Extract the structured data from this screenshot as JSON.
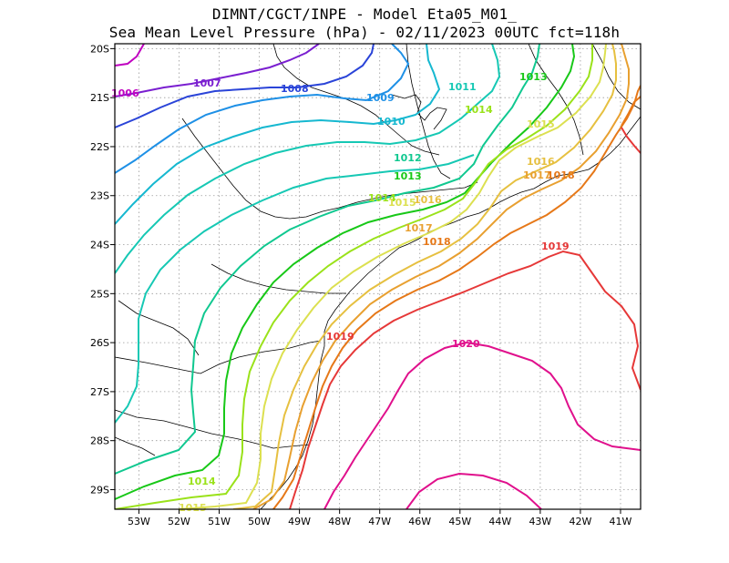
{
  "title_line1": "DIMNT/CGCT/INPE -  Model Eta05_M01_",
  "title_line2": "Sea Mean Level Pressure (hPa) - 02/11/2023 00UTC fct=118h",
  "map": {
    "lon_range": [
      -53.6,
      -40.5
    ],
    "lat_range": [
      -29.4,
      -19.9
    ],
    "x_ticks": [
      "53W",
      "52W",
      "51W",
      "50W",
      "49W",
      "48W",
      "47W",
      "46W",
      "45W",
      "44W",
      "43W",
      "42W",
      "41W"
    ],
    "y_ticks": [
      "20S",
      "21S",
      "22S",
      "23S",
      "24S",
      "25S",
      "26S",
      "27S",
      "28S",
      "29S"
    ],
    "grid": "dotted"
  },
  "contours": [
    {
      "level": "1006",
      "color": "#c000c0"
    },
    {
      "level": "1007",
      "color": "#7a1fd0"
    },
    {
      "level": "1008",
      "color": "#2a44d8"
    },
    {
      "level": "1009",
      "color": "#1e90e6"
    },
    {
      "level": "1010",
      "color": "#16b8d0"
    },
    {
      "level": "1011",
      "color": "#16c8b4"
    },
    {
      "level": "1012",
      "color": "#10c890"
    },
    {
      "level": "1013",
      "color": "#18c818"
    },
    {
      "level": "1014",
      "color": "#9ae21a"
    },
    {
      "level": "1015",
      "color": "#dce050"
    },
    {
      "level": "1016",
      "color": "#e6c040"
    },
    {
      "level": "1017",
      "color": "#e8a030"
    },
    {
      "level": "1018",
      "color": "#e67818"
    },
    {
      "level": "1019",
      "color": "#e63838"
    },
    {
      "level": "1020",
      "color": "#e0108c"
    }
  ]
}
